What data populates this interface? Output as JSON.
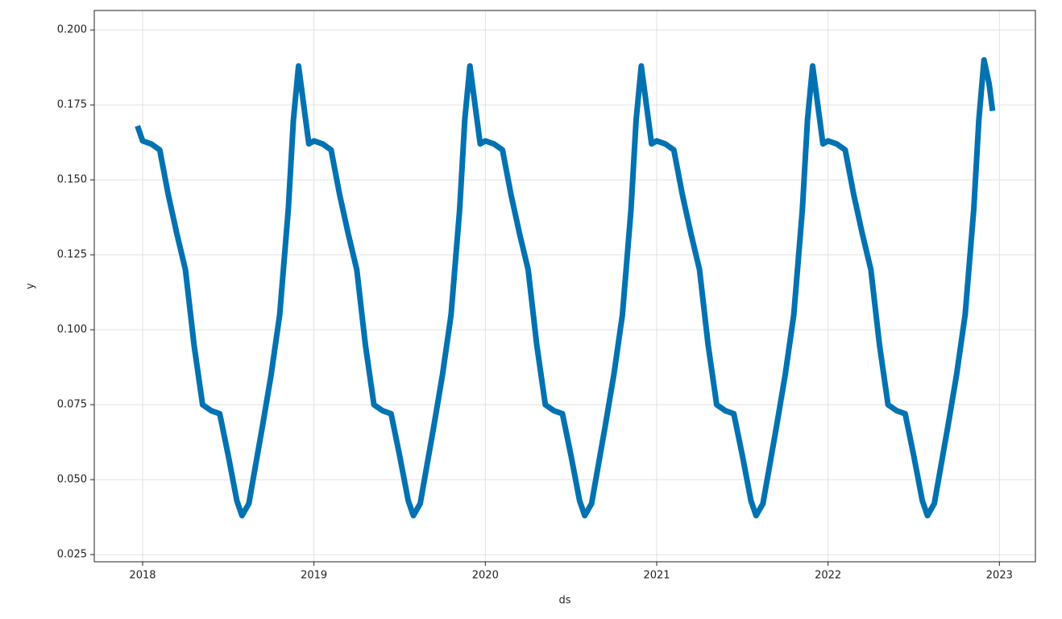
{
  "chart_data": {
    "type": "line",
    "xlabel": "ds",
    "ylabel": "y",
    "x": [
      2017.97,
      2018,
      2018.05,
      2018.1,
      2018.15,
      2018.2,
      2018.25,
      2018.3,
      2018.35,
      2018.4,
      2018.45,
      2018.5,
      2018.55,
      2018.58,
      2018.62,
      2018.66,
      2018.7,
      2018.75,
      2018.8,
      2018.85,
      2018.88,
      2018.91,
      2018.94,
      2018.97,
      2019,
      2019.05,
      2019.1,
      2019.15,
      2019.2,
      2019.25,
      2019.3,
      2019.35,
      2019.4,
      2019.45,
      2019.5,
      2019.55,
      2019.58,
      2019.62,
      2019.66,
      2019.7,
      2019.75,
      2019.8,
      2019.85,
      2019.88,
      2019.91,
      2019.94,
      2019.97,
      2020,
      2020.05,
      2020.1,
      2020.15,
      2020.2,
      2020.25,
      2020.3,
      2020.35,
      2020.4,
      2020.45,
      2020.5,
      2020.55,
      2020.58,
      2020.62,
      2020.66,
      2020.7,
      2020.75,
      2020.8,
      2020.85,
      2020.88,
      2020.91,
      2020.94,
      2020.97,
      2021,
      2021.05,
      2021.1,
      2021.15,
      2021.2,
      2021.25,
      2021.3,
      2021.35,
      2021.4,
      2021.45,
      2021.5,
      2021.55,
      2021.58,
      2021.62,
      2021.66,
      2021.7,
      2021.75,
      2021.8,
      2021.85,
      2021.88,
      2021.91,
      2021.94,
      2021.97,
      2022,
      2022.05,
      2022.1,
      2022.15,
      2022.2,
      2022.25,
      2022.3,
      2022.35,
      2022.4,
      2022.45,
      2022.5,
      2022.55,
      2022.58,
      2022.62,
      2022.66,
      2022.7,
      2022.75,
      2022.8,
      2022.85,
      2022.88,
      2022.91,
      2022.94,
      2022.96
    ],
    "series": [
      {
        "color": "#0072b2",
        "values": [
          0.168,
          0.163,
          0.162,
          0.16,
          0.145,
          0.132,
          0.12,
          0.095,
          0.075,
          0.073,
          0.072,
          0.058,
          0.043,
          0.038,
          0.042,
          0.055,
          0.068,
          0.085,
          0.105,
          0.14,
          0.17,
          0.188,
          0.175,
          0.162,
          0.163,
          0.162,
          0.16,
          0.145,
          0.132,
          0.12,
          0.095,
          0.075,
          0.073,
          0.072,
          0.058,
          0.043,
          0.038,
          0.042,
          0.055,
          0.068,
          0.085,
          0.105,
          0.14,
          0.17,
          0.188,
          0.175,
          0.162,
          0.163,
          0.162,
          0.16,
          0.145,
          0.132,
          0.12,
          0.095,
          0.075,
          0.073,
          0.072,
          0.058,
          0.043,
          0.038,
          0.042,
          0.055,
          0.068,
          0.085,
          0.105,
          0.14,
          0.17,
          0.188,
          0.175,
          0.162,
          0.163,
          0.162,
          0.16,
          0.145,
          0.132,
          0.12,
          0.095,
          0.075,
          0.073,
          0.072,
          0.058,
          0.043,
          0.038,
          0.042,
          0.055,
          0.068,
          0.085,
          0.105,
          0.14,
          0.17,
          0.188,
          0.175,
          0.162,
          0.163,
          0.162,
          0.16,
          0.145,
          0.132,
          0.12,
          0.095,
          0.075,
          0.073,
          0.072,
          0.058,
          0.043,
          0.038,
          0.042,
          0.055,
          0.068,
          0.085,
          0.105,
          0.14,
          0.17,
          0.19,
          0.182,
          0.173
        ]
      }
    ],
    "xlim": [
      2017.718,
      2023.21
    ],
    "xticks": [
      2018,
      2019,
      2020,
      2021,
      2022,
      2023
    ],
    "ylim": [
      0.0226,
      0.2065
    ],
    "yticks": [
      0.025,
      {
        "value": 0.05,
        "label": "0.050"
      },
      0.075,
      {
        "value": 0.1,
        "label": "0.100"
      },
      0.125,
      {
        "value": 0.15,
        "label": "0.150"
      },
      0.175,
      {
        "value": 0.2,
        "label": "0.200"
      }
    ],
    "grid": true
  }
}
